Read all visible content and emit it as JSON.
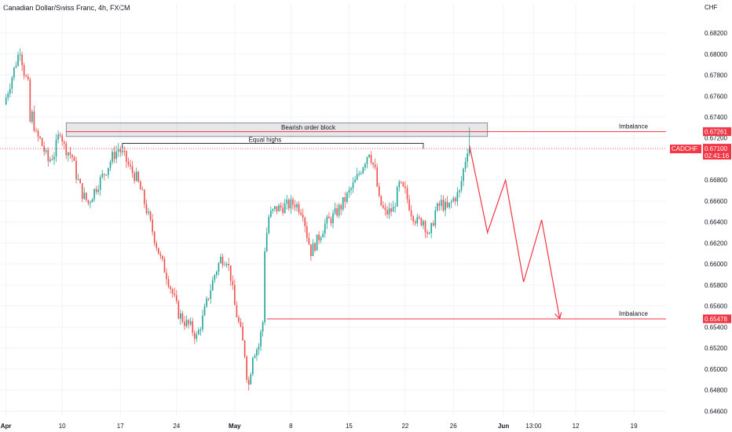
{
  "header": {
    "title": "Canadian Dollar/Swiss Franc, 4h, FXCM"
  },
  "chart_data": {
    "type": "candlestick",
    "currency_label": "CHF",
    "y_ticks": [
      "0.68200",
      "0.68000",
      "0.67800",
      "0.67600",
      "0.67400",
      "0.67200",
      "0.66800",
      "0.66600",
      "0.66400",
      "0.66200",
      "0.66000",
      "0.65800",
      "0.65600",
      "0.65400",
      "0.65200",
      "0.65000",
      "0.64800",
      "0.64600"
    ],
    "y_tick_values": [
      0.682,
      0.68,
      0.678,
      0.676,
      0.674,
      0.672,
      0.668,
      0.666,
      0.664,
      0.662,
      0.66,
      0.658,
      0.656,
      0.654,
      0.652,
      0.65,
      0.648,
      0.646
    ],
    "y_range": [
      0.6455,
      0.6838
    ],
    "x_ticks": [
      {
        "label": "Apr",
        "index": 0,
        "bold": true
      },
      {
        "label": "10",
        "index": 28,
        "bold": false
      },
      {
        "label": "17",
        "index": 57,
        "bold": false
      },
      {
        "label": "24",
        "index": 85,
        "bold": false
      },
      {
        "label": "May",
        "index": 114,
        "bold": true
      },
      {
        "label": "8",
        "index": 142,
        "bold": false
      },
      {
        "label": "15",
        "index": 171,
        "bold": false
      },
      {
        "label": "22",
        "index": 199,
        "bold": false
      },
      {
        "label": "26",
        "index": 223,
        "bold": false
      },
      {
        "label": "Jun",
        "index": 248,
        "bold": true
      },
      {
        "label": "13:00",
        "index": 263,
        "bold": false
      },
      {
        "label": "12",
        "index": 284,
        "bold": false
      },
      {
        "label": "19",
        "index": 313,
        "bold": false
      }
    ],
    "x_range": [
      -3,
      329
    ],
    "keypoints": [
      [
        0,
        0.6752
      ],
      [
        6,
        0.6792
      ],
      [
        8,
        0.6805
      ],
      [
        10,
        0.6783
      ],
      [
        12,
        0.677
      ],
      [
        13,
        0.6735
      ],
      [
        14,
        0.6742
      ],
      [
        16,
        0.6722
      ],
      [
        18,
        0.6718
      ],
      [
        20,
        0.6708
      ],
      [
        22,
        0.6698
      ],
      [
        25,
        0.6705
      ],
      [
        28,
        0.6728
      ],
      [
        30,
        0.6712
      ],
      [
        34,
        0.6702
      ],
      [
        36,
        0.6685
      ],
      [
        39,
        0.6667
      ],
      [
        42,
        0.6658
      ],
      [
        45,
        0.667
      ],
      [
        48,
        0.668
      ],
      [
        51,
        0.669
      ],
      [
        54,
        0.6702
      ],
      [
        57,
        0.671
      ],
      [
        60,
        0.6702
      ],
      [
        63,
        0.669
      ],
      [
        66,
        0.6682
      ],
      [
        69,
        0.6665
      ],
      [
        72,
        0.6645
      ],
      [
        75,
        0.6625
      ],
      [
        78,
        0.6605
      ],
      [
        81,
        0.659
      ],
      [
        84,
        0.6572
      ],
      [
        87,
        0.6553
      ],
      [
        90,
        0.6545
      ],
      [
        93,
        0.654
      ],
      [
        96,
        0.653
      ],
      [
        99,
        0.6548
      ],
      [
        102,
        0.657
      ],
      [
        105,
        0.659
      ],
      [
        108,
        0.6605
      ],
      [
        111,
        0.6605
      ],
      [
        113,
        0.6588
      ],
      [
        115,
        0.656
      ],
      [
        118,
        0.6535
      ],
      [
        120,
        0.6515
      ],
      [
        121,
        0.6495
      ],
      [
        122,
        0.6485
      ],
      [
        124,
        0.6515
      ],
      [
        127,
        0.6522
      ],
      [
        129,
        0.6545
      ],
      [
        130,
        0.6615
      ],
      [
        132,
        0.6645
      ],
      [
        135,
        0.6652
      ],
      [
        140,
        0.6655
      ],
      [
        145,
        0.6658
      ],
      [
        149,
        0.665
      ],
      [
        151,
        0.6628
      ],
      [
        153,
        0.6612
      ],
      [
        156,
        0.6622
      ],
      [
        160,
        0.6638
      ],
      [
        164,
        0.6645
      ],
      [
        168,
        0.6655
      ],
      [
        172,
        0.6668
      ],
      [
        175,
        0.6678
      ],
      [
        179,
        0.6695
      ],
      [
        182,
        0.6708
      ],
      [
        185,
        0.6688
      ],
      [
        187,
        0.666
      ],
      [
        190,
        0.6648
      ],
      [
        194,
        0.6652
      ],
      [
        197,
        0.6675
      ],
      [
        200,
        0.6668
      ],
      [
        203,
        0.665
      ],
      [
        206,
        0.664
      ],
      [
        209,
        0.6642
      ],
      [
        212,
        0.6625
      ],
      [
        215,
        0.665
      ],
      [
        218,
        0.6658
      ],
      [
        221,
        0.6652
      ],
      [
        224,
        0.6662
      ],
      [
        227,
        0.6668
      ],
      [
        229,
        0.669
      ],
      [
        231,
        0.671
      ]
    ],
    "annotations": {
      "bearish_order_block_label": "Bearish order block",
      "equal_highs_label": "Equal highs",
      "imbalance_top_label": "Imbalance",
      "imbalance_bottom_label": "Imbalance"
    },
    "levels": {
      "order_block_high": 0.67345,
      "order_block_low": 0.67215,
      "equal_highs": 0.6715,
      "equal_highs_x": [
        58,
        208
      ],
      "imbalance_top": 0.67261,
      "imbalance_bottom": 0.65478,
      "imbalance_bottom_start_x": 130,
      "current_price": 0.671,
      "block_x": [
        30,
        240
      ]
    },
    "projection_path": [
      [
        231,
        0.6713
      ],
      [
        240,
        0.663
      ],
      [
        249,
        0.668
      ],
      [
        258,
        0.6583
      ],
      [
        267,
        0.6642
      ],
      [
        276,
        0.6548
      ]
    ],
    "price_tags": {
      "imbalance_top": "0.67261",
      "current_price": "0.67100",
      "countdown": "02:41:16",
      "symbol": "CADCHF",
      "imbalance_bottom": "0.65478"
    },
    "colors": {
      "up": "#26a69a",
      "down": "#ef5350",
      "accent_red": "#f23645",
      "grid": "#f0f3fa",
      "axis_text": "#131722"
    }
  }
}
